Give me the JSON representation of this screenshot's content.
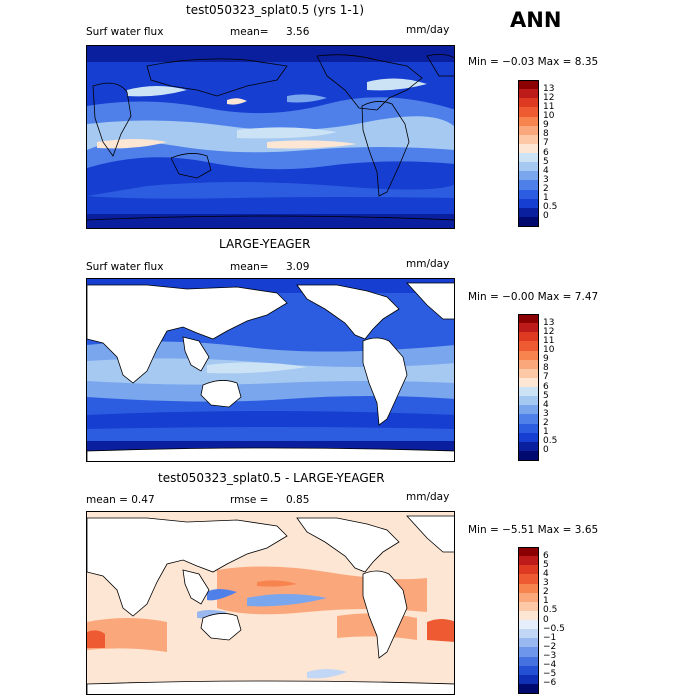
{
  "season": "ANN",
  "panels": [
    {
      "title": "test050323_splat0.5 (yrs 1-1)",
      "left_label": "Surf water flux",
      "mean_label": "mean=",
      "mean_value": "3.56",
      "units": "mm/day",
      "minmax": "Min =  −0.03 Max =   8.35",
      "land_masked": false,
      "colorbar_labels": [
        "13",
        "12",
        "11",
        "10",
        "9",
        "8",
        "7",
        "6",
        "5",
        "4",
        "3",
        "2",
        "1",
        "0.5",
        "0"
      ],
      "colorbar_colors": [
        "#8b0000",
        "#bd1a1a",
        "#de3a22",
        "#ee5a32",
        "#f7834f",
        "#fba77c",
        "#fdc8a6",
        "#fde6d3",
        "#cce3f5",
        "#a6c9f2",
        "#7aa6ee",
        "#4f80ea",
        "#2c5de0",
        "#163ed0",
        "#0a1f9e",
        "#000a6e"
      ]
    },
    {
      "title": "LARGE-YEAGER",
      "left_label": "Surf water flux",
      "mean_label": "mean=",
      "mean_value": "3.09",
      "units": "mm/day",
      "minmax": "Min =  −0.00 Max =   7.47",
      "land_masked": true,
      "colorbar_labels": [
        "13",
        "12",
        "11",
        "10",
        "9",
        "8",
        "7",
        "6",
        "5",
        "4",
        "3",
        "2",
        "1",
        "0.5",
        "0"
      ],
      "colorbar_colors": [
        "#8b0000",
        "#bd1a1a",
        "#de3a22",
        "#ee5a32",
        "#f7834f",
        "#fba77c",
        "#fdc8a6",
        "#fde6d3",
        "#cce3f5",
        "#a6c9f2",
        "#7aa6ee",
        "#4f80ea",
        "#2c5de0",
        "#163ed0",
        "#0a1f9e",
        "#000a6e"
      ]
    },
    {
      "title": "test050323_splat0.5 - LARGE-YEAGER",
      "left_label": "mean =    0.47",
      "mean_label": "rmse =",
      "mean_value": "0.85",
      "units": "mm/day",
      "minmax": "Min =  −5.51 Max =   3.65",
      "land_masked": true,
      "colorbar_labels": [
        "6",
        "5",
        "4",
        "3",
        "2",
        "1",
        "0.5",
        "0",
        "−0.5",
        "−1",
        "−2",
        "−3",
        "−4",
        "−5",
        "−6"
      ],
      "colorbar_colors": [
        "#8b0000",
        "#bd1a1a",
        "#de3a22",
        "#ee5a32",
        "#f7834f",
        "#fba77c",
        "#fdc8a6",
        "#fde6d3",
        "#e6eefb",
        "#c2d6f5",
        "#98b8ef",
        "#6e96ea",
        "#4672e0",
        "#2450d4",
        "#0f2fb4",
        "#000a6e"
      ]
    }
  ],
  "chart_data": [
    {
      "type": "heatmap",
      "title": "test050323_splat0.5 (yrs 1-1)",
      "variable": "Surf water flux",
      "units": "mm/day",
      "mean": 3.56,
      "min": -0.03,
      "max": 8.35,
      "contour_levels": [
        0,
        0.5,
        1,
        2,
        3,
        4,
        5,
        6,
        7,
        8,
        9,
        10,
        11,
        12,
        13
      ]
    },
    {
      "type": "heatmap",
      "title": "LARGE-YEAGER",
      "variable": "Surf water flux",
      "units": "mm/day",
      "mean": 3.09,
      "min": -0.0,
      "max": 7.47,
      "contour_levels": [
        0,
        0.5,
        1,
        2,
        3,
        4,
        5,
        6,
        7,
        8,
        9,
        10,
        11,
        12,
        13
      ]
    },
    {
      "type": "heatmap",
      "title": "test050323_splat0.5 - LARGE-YEAGER",
      "units": "mm/day",
      "mean": 0.47,
      "rmse": 0.85,
      "min": -5.51,
      "max": 3.65,
      "contour_levels": [
        -6,
        -5,
        -4,
        -3,
        -2,
        -1,
        -0.5,
        0,
        0.5,
        1,
        2,
        3,
        4,
        5,
        6
      ]
    }
  ]
}
